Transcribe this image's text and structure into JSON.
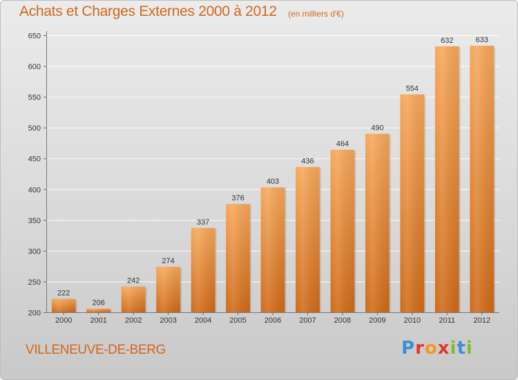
{
  "header": {
    "title": "Achats et Charges Externes 2000 à 2012",
    "subtitle": "(en milliers d'€)"
  },
  "footer": {
    "location": "VILLENEUVE-DE-BERG",
    "brand_logo_text": "Proxiti"
  },
  "colors": {
    "accent": "#d2671b",
    "bar_top": "#f7a85a",
    "bar_bottom": "#d06a18",
    "background_top": "#ebebeb",
    "background_bottom": "#c9c9c9"
  },
  "chart_data": {
    "type": "bar",
    "title": "Achats et Charges Externes 2000 à 2012",
    "subtitle": "(en milliers d'€)",
    "categories": [
      "2000",
      "2001",
      "2002",
      "2003",
      "2004",
      "2005",
      "2006",
      "2007",
      "2008",
      "2009",
      "2010",
      "2011",
      "2012"
    ],
    "values": [
      222,
      206,
      242,
      274,
      337,
      376,
      403,
      436,
      464,
      490,
      554,
      632,
      633
    ],
    "ylim": [
      200,
      650
    ],
    "yticks": [
      200,
      250,
      300,
      350,
      400,
      450,
      500,
      550,
      600,
      650
    ],
    "grid": true,
    "legend": "none"
  }
}
